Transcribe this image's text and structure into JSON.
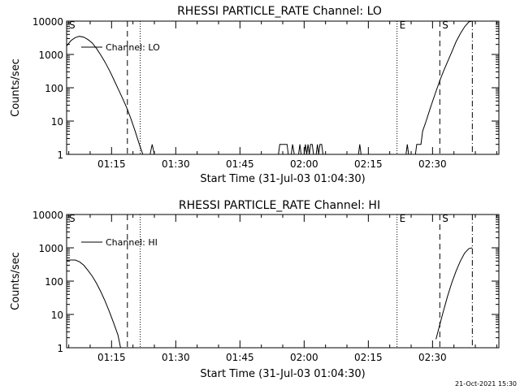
{
  "chart_data": [
    {
      "type": "line",
      "title": "RHESSI PARTICLE_RATE Channel: LO",
      "xlabel": "Start Time (31-Jul-03 01:04:30)",
      "ylabel": "Counts/sec",
      "yscale": "log",
      "ylim": [
        1,
        10000
      ],
      "xlim_minutes": [
        0,
        101
      ],
      "x_ticks": [
        {
          "minutes": 10.5,
          "label": "01:15"
        },
        {
          "minutes": 25.5,
          "label": "01:30"
        },
        {
          "minutes": 40.5,
          "label": "01:45"
        },
        {
          "minutes": 55.5,
          "label": "02:00"
        },
        {
          "minutes": 70.5,
          "label": "02:15"
        },
        {
          "minutes": 85.5,
          "label": "02:30"
        }
      ],
      "y_ticks": [
        {
          "value": 1,
          "label": "1"
        },
        {
          "value": 10,
          "label": "10"
        },
        {
          "value": 100,
          "label": "100"
        },
        {
          "value": 1000,
          "label": "1000"
        },
        {
          "value": 10000,
          "label": "10000"
        }
      ],
      "legend": "Channel: LO",
      "markers": [
        {
          "minutes": 0,
          "label": "S",
          "style": "solid"
        },
        {
          "minutes": 14.2,
          "label": "",
          "style": "dashed"
        },
        {
          "minutes": 17.2,
          "label": "",
          "style": "dotted"
        },
        {
          "minutes": 77.2,
          "label": "E",
          "style": "dotted"
        },
        {
          "minutes": 87.2,
          "label": "S",
          "style": "dashed"
        },
        {
          "minutes": 94.8,
          "label": "",
          "style": "dashdot"
        }
      ],
      "series": [
        {
          "name": "Channel: LO",
          "segments": [
            [
              [
                0,
                1800
              ],
              [
                1,
                2600
              ],
              [
                2,
                3200
              ],
              [
                3,
                3500
              ],
              [
                4,
                3300
              ],
              [
                5,
                2800
              ],
              [
                6,
                2200
              ],
              [
                7,
                1500
              ],
              [
                8,
                950
              ],
              [
                9,
                580
              ],
              [
                10,
                330
              ],
              [
                11,
                180
              ],
              [
                12,
                95
              ],
              [
                13,
                50
              ],
              [
                14,
                26
              ],
              [
                15,
                12
              ],
              [
                16,
                5
              ],
              [
                17,
                2
              ],
              [
                17.8,
                1
              ]
            ],
            [
              [
                19.5,
                1
              ],
              [
                20,
                2
              ],
              [
                20.5,
                1
              ]
            ],
            [
              [
                49.5,
                1
              ],
              [
                49.8,
                2
              ],
              [
                51.5,
                2
              ],
              [
                51.8,
                1
              ]
            ],
            [
              [
                52.5,
                1
              ],
              [
                52.8,
                2
              ],
              [
                53.2,
                1
              ]
            ],
            [
              [
                54.2,
                1
              ],
              [
                54.5,
                2
              ],
              [
                54.8,
                1
              ]
            ],
            [
              [
                55.5,
                1
              ],
              [
                55.8,
                2
              ],
              [
                56.1,
                1
              ],
              [
                56.4,
                2
              ],
              [
                56.7,
                1
              ],
              [
                57,
                2
              ],
              [
                57.4,
                2
              ],
              [
                57.7,
                1
              ]
            ],
            [
              [
                58.3,
                1
              ],
              [
                58.6,
                2
              ],
              [
                58.9,
                1
              ],
              [
                59.2,
                2
              ],
              [
                59.6,
                2
              ],
              [
                59.9,
                1
              ]
            ],
            [
              [
                68.2,
                1
              ],
              [
                68.5,
                2
              ],
              [
                68.8,
                1
              ]
            ],
            [
              [
                79.3,
                1
              ],
              [
                79.6,
                2
              ],
              [
                79.9,
                1
              ]
            ],
            [
              [
                81.5,
                1
              ],
              [
                81.8,
                2
              ],
              [
                82.8,
                2
              ],
              [
                83.2,
                5
              ],
              [
                84,
                10
              ],
              [
                85,
                25
              ],
              [
                86,
                60
              ],
              [
                87,
                140
              ],
              [
                88,
                300
              ],
              [
                89,
                600
              ],
              [
                90,
                1200
              ],
              [
                91,
                2400
              ],
              [
                92,
                4200
              ],
              [
                93,
                6800
              ],
              [
                94,
                9500
              ],
              [
                94.8,
                10000
              ]
            ]
          ]
        }
      ]
    },
    {
      "type": "line",
      "title": "RHESSI PARTICLE_RATE Channel: HI",
      "xlabel": "Start Time (31-Jul-03 01:04:30)",
      "ylabel": "Counts/sec",
      "yscale": "log",
      "ylim": [
        1,
        10000
      ],
      "xlim_minutes": [
        0,
        101
      ],
      "x_ticks": [
        {
          "minutes": 10.5,
          "label": "01:15"
        },
        {
          "minutes": 25.5,
          "label": "01:30"
        },
        {
          "minutes": 40.5,
          "label": "01:45"
        },
        {
          "minutes": 55.5,
          "label": "02:00"
        },
        {
          "minutes": 70.5,
          "label": "02:15"
        },
        {
          "minutes": 85.5,
          "label": "02:30"
        }
      ],
      "y_ticks": [
        {
          "value": 1,
          "label": "1"
        },
        {
          "value": 10,
          "label": "10"
        },
        {
          "value": 100,
          "label": "100"
        },
        {
          "value": 1000,
          "label": "1000"
        },
        {
          "value": 10000,
          "label": "10000"
        }
      ],
      "legend": "Channel: HI",
      "markers": [
        {
          "minutes": 0,
          "label": "S",
          "style": "solid"
        },
        {
          "minutes": 14.2,
          "label": "",
          "style": "dashed"
        },
        {
          "minutes": 17.2,
          "label": "",
          "style": "dotted"
        },
        {
          "minutes": 77.2,
          "label": "E",
          "style": "dotted"
        },
        {
          "minutes": 87.2,
          "label": "S",
          "style": "dashed"
        },
        {
          "minutes": 94.8,
          "label": "",
          "style": "dashdot"
        }
      ],
      "series": [
        {
          "name": "Channel: HI",
          "segments": [
            [
              [
                0,
                420
              ],
              [
                1,
                430
              ],
              [
                2,
                430
              ],
              [
                3,
                380
              ],
              [
                4,
                300
              ],
              [
                5,
                210
              ],
              [
                6,
                140
              ],
              [
                7,
                85
              ],
              [
                8,
                48
              ],
              [
                9,
                25
              ],
              [
                10,
                12
              ],
              [
                11,
                5.5
              ],
              [
                12,
                2.4
              ],
              [
                12.6,
                1
              ]
            ],
            [
              [
                86.3,
                1.8
              ],
              [
                87,
                4
              ],
              [
                88,
                12
              ],
              [
                89,
                35
              ],
              [
                90,
                90
              ],
              [
                91,
                200
              ],
              [
                92,
                400
              ],
              [
                93,
                700
              ],
              [
                94,
                950
              ],
              [
                94.8,
                1000
              ]
            ]
          ]
        }
      ]
    }
  ],
  "timestamp": "21-Oct-2021 15:30"
}
